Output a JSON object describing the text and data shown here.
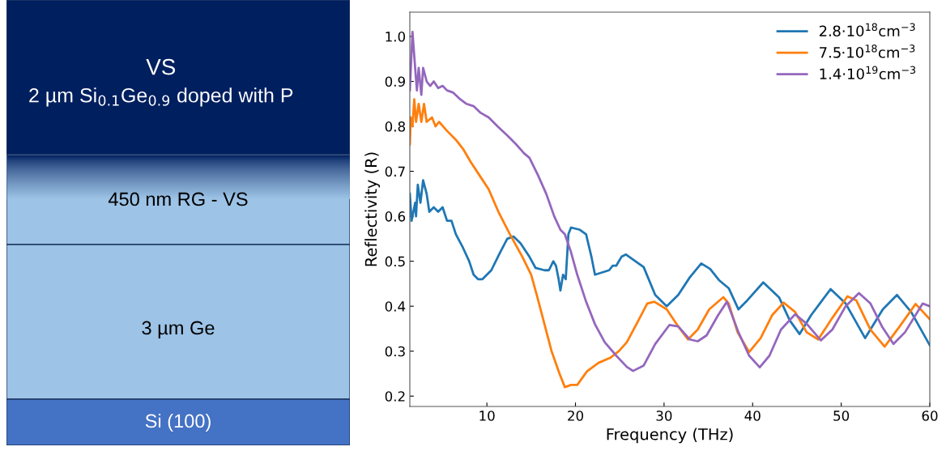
{
  "chart_data": [
    {
      "type": "other",
      "annotations": [
        "VS",
        "2 µm Si$_{0.1}$Ge$_{0.9}$ doped with P",
        "450 nm RG - VS",
        "3 µm Ge",
        "Si (100)"
      ]
    },
    {
      "type": "line",
      "xlabel": "Frequency (THz)",
      "ylabel": "Reflectivity (R)",
      "xlim": [
        1.3,
        60
      ],
      "ylim": [
        0.177,
        1.054
      ],
      "xticks": [
        10,
        20,
        30,
        40,
        50,
        60
      ],
      "yticks": [
        0.2,
        0.3,
        0.4,
        0.5,
        0.6,
        0.7,
        0.8,
        0.9,
        {
          "value": 1.0,
          "label": "1.0"
        }
      ],
      "grid": false,
      "legend": "top right",
      "marker": "none",
      "line_style": "solid",
      "series": [
        {
          "name": "2.8·10$^{18}$cm$^{−3}$",
          "color": "#1f77b4",
          "x": [
            1.3,
            1.5,
            1.9,
            2.0,
            2.2,
            2.5,
            2.8,
            3.2,
            3.5,
            4,
            4.5,
            5,
            5.5,
            6,
            6.5,
            7.3,
            8,
            8.5,
            9,
            9.5,
            10.5,
            11.5,
            12.3,
            13,
            13.8,
            14.8,
            15.5,
            16.5,
            17,
            17.5,
            17.8,
            18.1,
            18.3,
            18.6,
            18.9,
            19.2,
            19.5,
            20.5,
            21.2,
            21.8,
            22.2,
            23,
            23.8,
            24.2,
            24.6,
            25.2,
            25.7,
            27.7,
            29.0,
            30.3,
            31.6,
            32.9,
            34.2,
            35.2,
            36.2,
            37.3,
            38.4,
            39.4,
            41.2,
            43.0,
            44.2,
            45.3,
            46.6,
            48.8,
            50.5,
            52.7,
            54.7,
            56.3,
            57.9,
            60
          ],
          "values": [
            0.65,
            0.59,
            0.63,
            0.6,
            0.67,
            0.63,
            0.68,
            0.65,
            0.61,
            0.62,
            0.61,
            0.62,
            0.59,
            0.59,
            0.56,
            0.53,
            0.5,
            0.47,
            0.46,
            0.46,
            0.48,
            0.52,
            0.55,
            0.555,
            0.54,
            0.51,
            0.485,
            0.48,
            0.48,
            0.5,
            0.49,
            0.46,
            0.435,
            0.47,
            0.46,
            0.56,
            0.575,
            0.57,
            0.56,
            0.51,
            0.47,
            0.475,
            0.48,
            0.49,
            0.49,
            0.51,
            0.515,
            0.487,
            0.425,
            0.4,
            0.425,
            0.464,
            0.495,
            0.483,
            0.458,
            0.44,
            0.393,
            0.413,
            0.453,
            0.419,
            0.368,
            0.338,
            0.38,
            0.438,
            0.406,
            0.329,
            0.393,
            0.425,
            0.387,
            0.313
          ]
        },
        {
          "name": "7.5·10$^{18}$cm$^{−3}$",
          "color": "#ff7f0e",
          "x": [
            1.3,
            1.4,
            1.6,
            1.8,
            2.0,
            2.3,
            2.6,
            2.9,
            3.2,
            3.8,
            4.2,
            4.6,
            5.5,
            6.5,
            7.3,
            8.2,
            9.2,
            10.2,
            11.3,
            12.6,
            14,
            15,
            15.7,
            16.5,
            17.3,
            18.2,
            18.8,
            19.5,
            20.2,
            21.3,
            22.6,
            23.9,
            24.9,
            25.8,
            27.1,
            28.1,
            28.9,
            30.3,
            31.6,
            32.7,
            33.8,
            35.1,
            36.7,
            37.3,
            38.3,
            39.6,
            40.9,
            42.2,
            43.5,
            44.8,
            46.1,
            47.4,
            49.0,
            50.7,
            51.7,
            53.3,
            54.9,
            56.6,
            58.4,
            60
          ],
          "values": [
            0.76,
            0.82,
            0.8,
            0.86,
            0.81,
            0.85,
            0.81,
            0.85,
            0.81,
            0.82,
            0.8,
            0.81,
            0.79,
            0.77,
            0.75,
            0.72,
            0.69,
            0.66,
            0.61,
            0.56,
            0.51,
            0.47,
            0.42,
            0.36,
            0.3,
            0.25,
            0.22,
            0.225,
            0.225,
            0.255,
            0.274,
            0.285,
            0.3,
            0.32,
            0.368,
            0.406,
            0.41,
            0.393,
            0.355,
            0.326,
            0.348,
            0.393,
            0.42,
            0.406,
            0.342,
            0.298,
            0.329,
            0.38,
            0.408,
            0.387,
            0.342,
            0.326,
            0.374,
            0.422,
            0.413,
            0.348,
            0.31,
            0.355,
            0.405,
            0.371
          ]
        },
        {
          "name": "1.4·10$^{19}$cm$^{−3}$",
          "color": "#9467bd",
          "x": [
            1.3,
            1.6,
            1.9,
            2.1,
            2.3,
            2.6,
            2.8,
            3.2,
            3.6,
            4,
            4.5,
            5,
            5.5,
            6.2,
            7,
            7.7,
            8.5,
            9.3,
            10.2,
            11.2,
            12.3,
            13.3,
            14.2,
            14.8,
            15.8,
            16.7,
            17.6,
            18.3,
            18.8,
            19.5,
            20.2,
            21.2,
            22.2,
            23.3,
            24.6,
            25.8,
            26.5,
            27.7,
            29.0,
            30.6,
            31.6,
            32.9,
            33.8,
            34.8,
            36.1,
            37.1,
            38.4,
            39.6,
            40.8,
            41.9,
            43.2,
            44.8,
            46.1,
            47.7,
            49.0,
            50.5,
            52.0,
            53.3,
            54.6,
            55.9,
            57.2,
            59.2,
            60
          ],
          "values": [
            0.88,
            1.01,
            0.93,
            0.88,
            0.93,
            0.87,
            0.93,
            0.9,
            0.89,
            0.9,
            0.885,
            0.89,
            0.88,
            0.875,
            0.86,
            0.85,
            0.845,
            0.83,
            0.82,
            0.8,
            0.78,
            0.76,
            0.74,
            0.73,
            0.69,
            0.65,
            0.6,
            0.57,
            0.56,
            0.52,
            0.47,
            0.41,
            0.36,
            0.32,
            0.29,
            0.265,
            0.256,
            0.268,
            0.316,
            0.358,
            0.355,
            0.326,
            0.322,
            0.335,
            0.38,
            0.41,
            0.342,
            0.29,
            0.264,
            0.29,
            0.348,
            0.382,
            0.361,
            0.324,
            0.348,
            0.4,
            0.429,
            0.406,
            0.355,
            0.316,
            0.342,
            0.406,
            0.4
          ]
        }
      ]
    }
  ]
}
